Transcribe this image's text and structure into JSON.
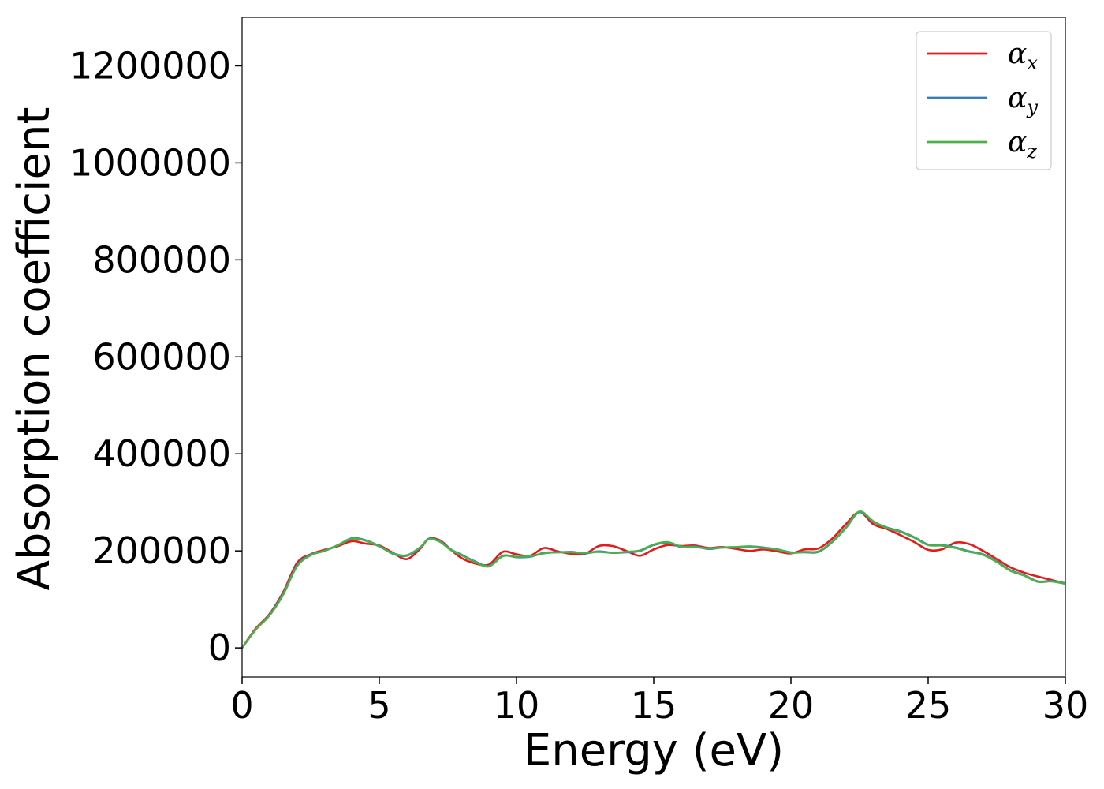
{
  "chart_data": {
    "type": "line",
    "title": "",
    "xlabel": "Energy (eV)",
    "ylabel": "Absorption coefficient",
    "xlim": [
      0,
      30
    ],
    "ylim": [
      -60000,
      1300000
    ],
    "x_ticks": [
      "0",
      "5",
      "10",
      "15",
      "20",
      "25",
      "30"
    ],
    "x_tick_values": [
      0,
      5,
      10,
      15,
      20,
      25,
      30
    ],
    "y_ticks": [
      "0",
      "200000",
      "400000",
      "600000",
      "800000",
      "1000000",
      "1200000"
    ],
    "y_tick_values": [
      0,
      200000,
      400000,
      600000,
      800000,
      1000000,
      1200000
    ],
    "grid": false,
    "legend_position": "top-right",
    "series": [
      {
        "name": "α",
        "subscript": "x",
        "color": "#e41a1c",
        "x": [
          0,
          0.5,
          1.0,
          1.5,
          2.0,
          2.5,
          3.0,
          3.5,
          4.0,
          4.5,
          5.0,
          5.5,
          6.0,
          6.5,
          6.8,
          7.2,
          7.6,
          8.0,
          8.5,
          9.0,
          9.5,
          10.0,
          10.5,
          11.0,
          11.5,
          12.0,
          12.5,
          13.0,
          13.5,
          14.0,
          14.5,
          15.0,
          15.5,
          16.0,
          16.5,
          17.0,
          17.5,
          18.0,
          18.5,
          19.0,
          19.5,
          20.0,
          20.5,
          21.0,
          21.5,
          22.0,
          22.5,
          23.0,
          23.5,
          24.0,
          24.5,
          25.0,
          25.5,
          26.0,
          26.5,
          27.0,
          27.5,
          28.0,
          28.5,
          29.0,
          29.5,
          30.0
        ],
        "y": [
          0,
          40000,
          70000,
          115000,
          175000,
          193000,
          202000,
          210000,
          220000,
          215000,
          211000,
          196000,
          183000,
          205000,
          225000,
          222000,
          203000,
          185000,
          174000,
          172000,
          198000,
          193000,
          190000,
          206000,
          199000,
          194000,
          194000,
          210000,
          210000,
          200000,
          190000,
          203000,
          212000,
          210000,
          211000,
          206000,
          208000,
          204000,
          200000,
          203000,
          199000,
          195000,
          203000,
          205000,
          225000,
          255000,
          280000,
          255000,
          245000,
          232000,
          218000,
          202000,
          203000,
          217000,
          214000,
          200000,
          183000,
          166000,
          155000,
          147000,
          140000,
          133000
        ]
      },
      {
        "name": "α",
        "subscript": "y",
        "color": "#377eb8",
        "x": [
          0,
          0.5,
          1.0,
          1.5,
          2.0,
          2.5,
          3.0,
          3.5,
          4.0,
          4.5,
          5.0,
          5.5,
          6.0,
          6.5,
          6.8,
          7.2,
          7.6,
          8.0,
          8.5,
          9.0,
          9.5,
          10.0,
          10.5,
          11.0,
          11.5,
          12.0,
          12.5,
          13.0,
          13.5,
          14.0,
          14.5,
          15.0,
          15.5,
          16.0,
          16.5,
          17.0,
          17.5,
          18.0,
          18.5,
          19.0,
          19.5,
          20.0,
          20.5,
          21.0,
          21.5,
          22.0,
          22.5,
          23.0,
          23.5,
          24.0,
          24.5,
          25.0,
          25.5,
          26.0,
          26.5,
          27.0,
          27.5,
          28.0,
          28.5,
          29.0,
          29.5,
          30.0
        ],
        "y": [
          0,
          38000,
          68000,
          112000,
          170000,
          192000,
          200000,
          212000,
          226000,
          222000,
          210000,
          194000,
          190000,
          207000,
          225000,
          220000,
          203000,
          192000,
          178000,
          169000,
          190000,
          187000,
          188000,
          196000,
          197000,
          198000,
          195000,
          199000,
          196000,
          197000,
          200000,
          212000,
          217000,
          208000,
          209000,
          204000,
          207000,
          207000,
          209000,
          207000,
          203000,
          197000,
          197000,
          198000,
          218000,
          247000,
          280000,
          260000,
          248000,
          240000,
          228000,
          213000,
          212000,
          207000,
          199000,
          193000,
          178000,
          160000,
          150000,
          137000,
          138000,
          133000
        ]
      },
      {
        "name": "α",
        "subscript": "z",
        "color": "#4daf4a",
        "x": [
          0,
          0.5,
          1.0,
          1.5,
          2.0,
          2.5,
          3.0,
          3.5,
          4.0,
          4.5,
          5.0,
          5.5,
          6.0,
          6.5,
          6.8,
          7.2,
          7.6,
          8.0,
          8.5,
          9.0,
          9.5,
          10.0,
          10.5,
          11.0,
          11.5,
          12.0,
          12.5,
          13.0,
          13.5,
          14.0,
          14.5,
          15.0,
          15.5,
          16.0,
          16.5,
          17.0,
          17.5,
          18.0,
          18.5,
          19.0,
          19.5,
          20.0,
          20.5,
          21.0,
          21.5,
          22.0,
          22.5,
          23.0,
          23.5,
          24.0,
          24.5,
          25.0,
          25.5,
          26.0,
          26.5,
          27.0,
          27.5,
          28.0,
          28.5,
          29.0,
          29.5,
          30.0
        ],
        "y": [
          0,
          38000,
          67000,
          110000,
          168000,
          191000,
          200000,
          212000,
          225000,
          221000,
          209000,
          195000,
          191000,
          208000,
          224000,
          219000,
          202000,
          191000,
          177000,
          168000,
          189000,
          188000,
          189000,
          195000,
          197000,
          197000,
          196000,
          198000,
          196000,
          198000,
          201000,
          213000,
          218000,
          209000,
          208000,
          205000,
          207000,
          208000,
          209000,
          206000,
          203000,
          196000,
          198000,
          199000,
          219000,
          248000,
          281000,
          261000,
          247000,
          239000,
          227000,
          212000,
          211000,
          206000,
          198000,
          192000,
          177000,
          159000,
          149000,
          136000,
          137000,
          132000
        ]
      }
    ]
  }
}
